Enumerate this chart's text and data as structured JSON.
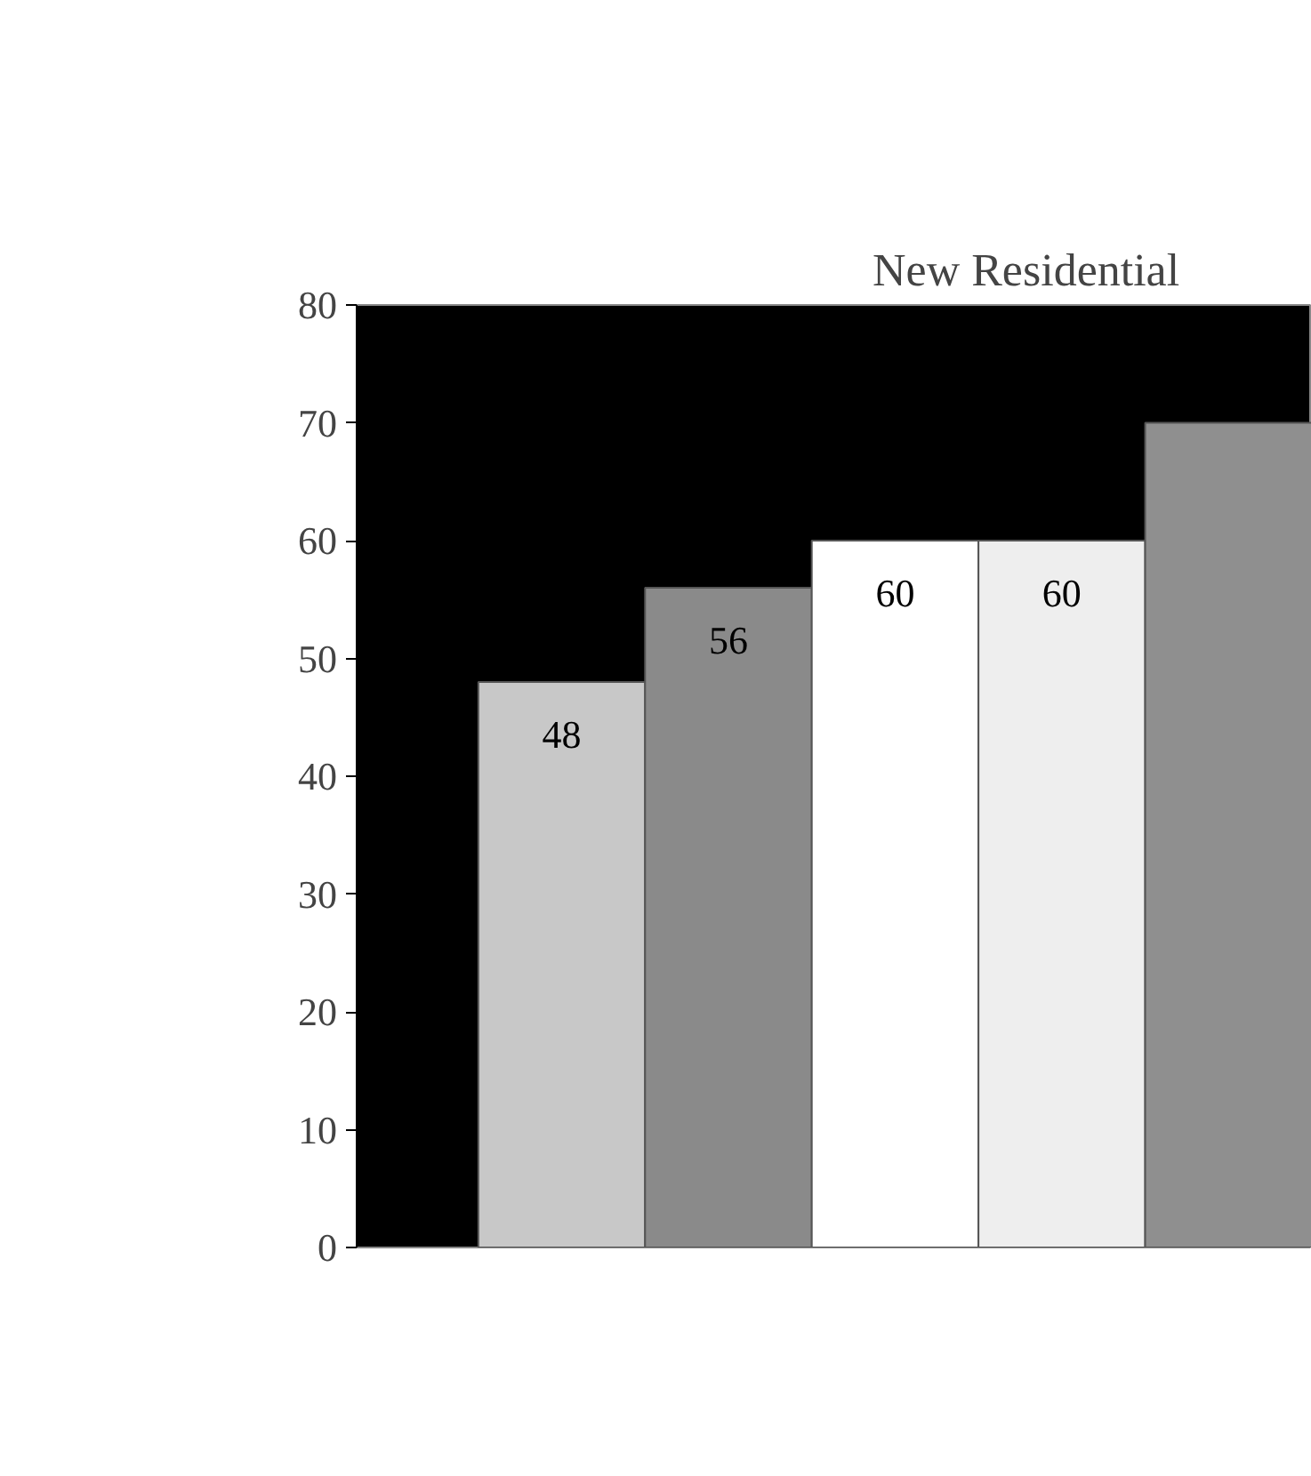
{
  "chart_data": {
    "type": "bar",
    "title": "New Residential",
    "categories": [
      null,
      null,
      null,
      null,
      null
    ],
    "values": [
      48,
      56,
      60,
      60,
      70
    ],
    "colors": [
      "#c8c8c8",
      "#8a8a8a",
      "#ffffff",
      "#eeeeee",
      "#8f8f8f"
    ],
    "value_labels": [
      "48",
      "56",
      "60",
      "60",
      null
    ],
    "ylim": [
      0,
      80
    ],
    "yticks": [
      0,
      10,
      20,
      30,
      40,
      50,
      60,
      70,
      80
    ],
    "grid": false
  }
}
